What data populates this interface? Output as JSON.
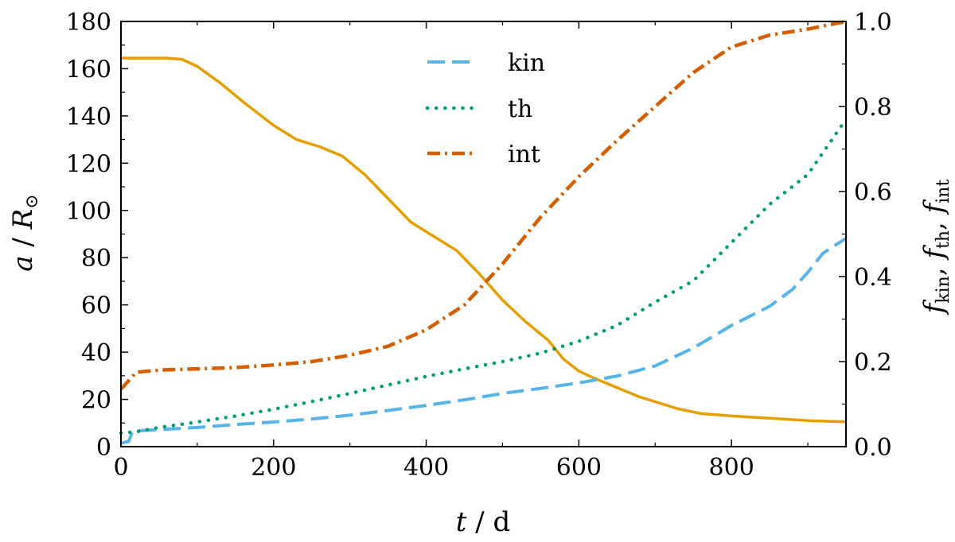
{
  "chart_data": {
    "type": "line",
    "title": "",
    "xlabel": {
      "var": "t",
      "unit": "d",
      "separator": " / "
    },
    "ylabel_left": {
      "var": "a",
      "unit": "R",
      "unit_sub": "⊙",
      "separator": " / "
    },
    "ylabel_right": [
      {
        "var": "f",
        "sub": "kin"
      },
      {
        "var": "f",
        "sub": "th"
      },
      {
        "var": "f",
        "sub": "int"
      }
    ],
    "xlim": [
      0,
      950
    ],
    "ylim_left": [
      0,
      180
    ],
    "ylim_right": [
      0.0,
      1.0
    ],
    "xticks": [
      0,
      200,
      400,
      600,
      800
    ],
    "xtick_labels": [
      "0",
      "200",
      "400",
      "600",
      "800"
    ],
    "yticks_left": [
      0,
      20,
      40,
      60,
      80,
      100,
      120,
      140,
      160,
      180
    ],
    "ytick_labels_left": [
      "0",
      "20",
      "40",
      "60",
      "80",
      "100",
      "120",
      "140",
      "160",
      "180"
    ],
    "yticks_right": [
      0.0,
      0.2,
      0.4,
      0.6,
      0.8,
      1.0
    ],
    "ytick_labels_right": [
      "0.0",
      "0.2",
      "0.4",
      "0.6",
      "0.8",
      "1.0"
    ],
    "grid": false,
    "legend_position": "top-center",
    "series": [
      {
        "name": "",
        "axis": "left",
        "color": "#E69F00",
        "style": "solid",
        "x": [
          0,
          20,
          60,
          80,
          100,
          130,
          160,
          200,
          230,
          260,
          290,
          320,
          350,
          380,
          410,
          440,
          470,
          500,
          530,
          560,
          580,
          600,
          620,
          650,
          680,
          700,
          730,
          760,
          800,
          850,
          900,
          950
        ],
        "y": [
          164.5,
          164.5,
          164.5,
          164,
          161,
          154,
          146,
          136,
          130,
          127,
          123,
          115,
          105,
          95,
          89,
          83,
          73,
          62,
          53,
          45,
          37,
          32,
          29,
          25,
          21,
          19,
          16,
          14,
          13,
          12,
          11,
          10.5
        ]
      },
      {
        "name": "kin",
        "axis": "right",
        "color": "#56B4E9",
        "style": "dashed",
        "x": [
          0,
          5,
          10,
          15,
          20,
          50,
          100,
          150,
          200,
          250,
          300,
          350,
          400,
          450,
          500,
          550,
          600,
          650,
          700,
          750,
          800,
          850,
          880,
          900,
          920,
          950
        ],
        "y": [
          0.008,
          0.01,
          0.012,
          0.035,
          0.037,
          0.04,
          0.045,
          0.052,
          0.058,
          0.065,
          0.074,
          0.085,
          0.097,
          0.11,
          0.125,
          0.137,
          0.15,
          0.166,
          0.19,
          0.232,
          0.285,
          0.33,
          0.37,
          0.41,
          0.455,
          0.49
        ]
      },
      {
        "name": "th",
        "axis": "right",
        "color": "#009E73",
        "style": "dotted",
        "x": [
          0,
          20,
          50,
          100,
          150,
          200,
          250,
          300,
          350,
          400,
          450,
          500,
          550,
          600,
          650,
          700,
          750,
          800,
          850,
          900,
          950
        ],
        "y": [
          0.032,
          0.035,
          0.045,
          0.058,
          0.072,
          0.088,
          0.106,
          0.125,
          0.145,
          0.165,
          0.183,
          0.2,
          0.22,
          0.248,
          0.285,
          0.34,
          0.39,
          0.48,
          0.57,
          0.64,
          0.77
        ]
      },
      {
        "name": "int",
        "axis": "right",
        "color": "#D55E00",
        "style": "dashdot",
        "x": [
          0,
          10,
          20,
          50,
          100,
          150,
          200,
          250,
          300,
          350,
          400,
          450,
          500,
          550,
          600,
          650,
          700,
          750,
          800,
          850,
          900,
          950
        ],
        "y": [
          0.135,
          0.155,
          0.175,
          0.18,
          0.183,
          0.186,
          0.192,
          0.2,
          0.215,
          0.236,
          0.275,
          0.333,
          0.43,
          0.54,
          0.635,
          0.72,
          0.8,
          0.88,
          0.94,
          0.968,
          0.982,
          1.0
        ]
      }
    ]
  }
}
